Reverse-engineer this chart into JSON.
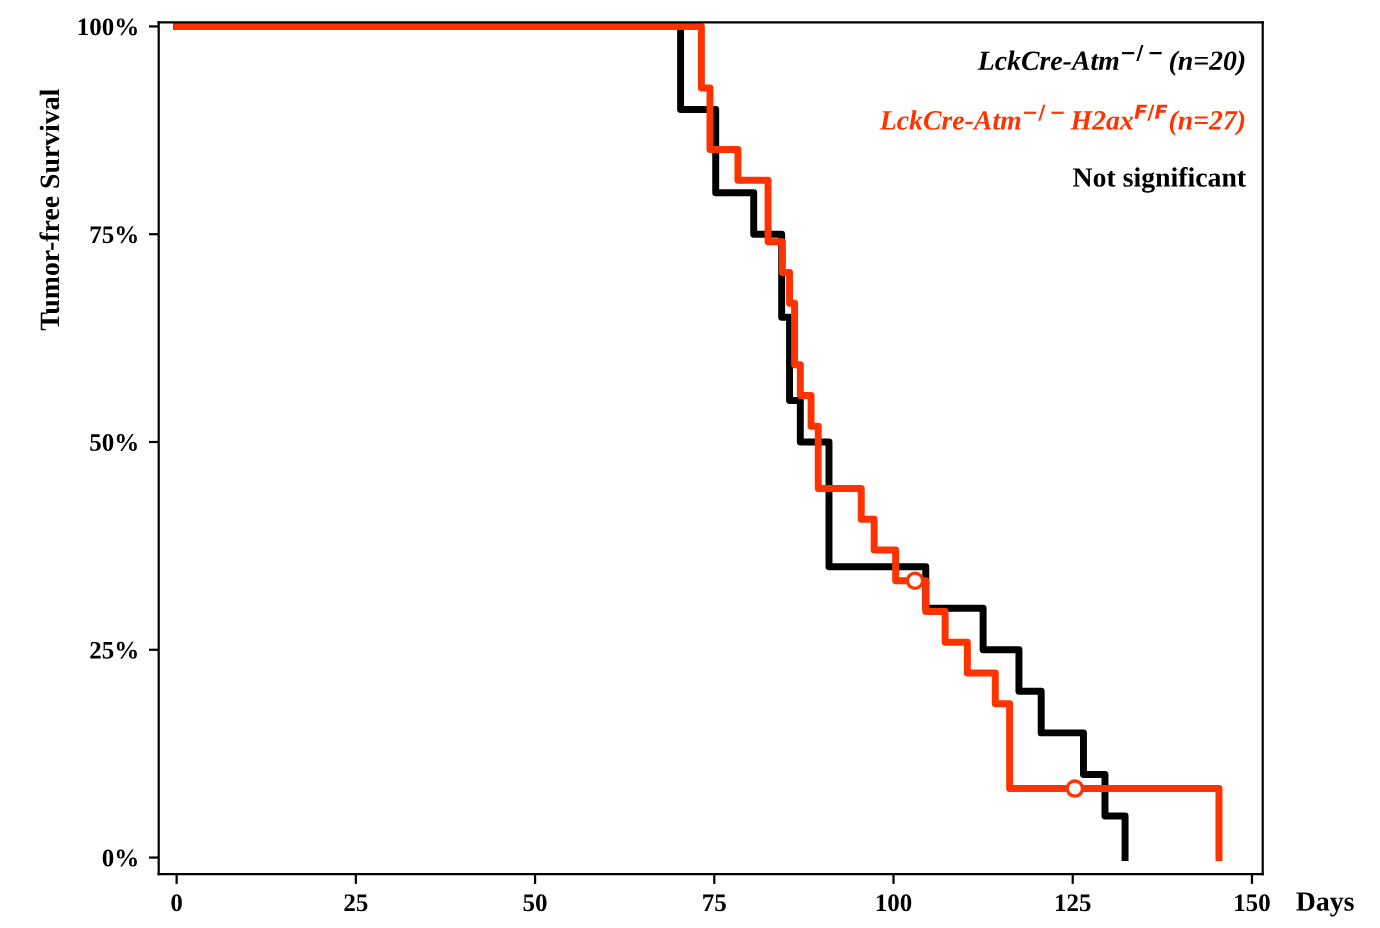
{
  "chart_data": {
    "type": "step",
    "xlabel": "Days",
    "ylabel": "Tumor-free Survival",
    "xlim": [
      -2.5,
      151.5
    ],
    "ylim": [
      -2,
      100.5
    ],
    "xticks": [
      0,
      25,
      50,
      75,
      100,
      125,
      150
    ],
    "yticks": [
      {
        "value": 0,
        "label": "0%"
      },
      {
        "value": 25,
        "label": "25%"
      },
      {
        "value": 50,
        "label": "50%"
      },
      {
        "value": 75,
        "label": "75%"
      },
      {
        "value": 100,
        "label": "100%"
      }
    ],
    "grid": false,
    "legend": "top right",
    "annotations": [
      "Not significant"
    ],
    "series": [
      {
        "name": "LckCre-Atm$^{−/−}$(n=20)",
        "color": "#000000",
        "x": [
          0,
          70.3,
          75.2,
          80.5,
          84.4,
          85.5,
          87,
          91,
          104.5,
          112.5,
          117.5,
          120.6,
          126.5,
          129.5,
          132.3
        ],
        "values": [
          100,
          90,
          80,
          75,
          65,
          55,
          50,
          35,
          30,
          25,
          20,
          15,
          10,
          5,
          0
        ]
      },
      {
        "name": "LckCre-Atm$^{−/−}$H2ax$^{F/F}$(n=27)",
        "color": "#ff3300",
        "x": [
          0,
          73.2,
          74.4,
          78.3,
          82.5,
          84.5,
          85.5,
          86.2,
          87,
          88.5,
          89.5,
          95.5,
          97.3,
          100.3,
          104.5,
          107.2,
          110.3,
          114.2,
          116.2,
          145.4
        ],
        "values": [
          100,
          92.6,
          85.2,
          81.5,
          74.1,
          70.4,
          66.7,
          59.3,
          55.6,
          51.9,
          44.4,
          40.7,
          37,
          33.3,
          29.6,
          25.9,
          22.2,
          18.5,
          8.3,
          0
        ]
      },
      {
        "type": "scatter",
        "marker": "circle",
        "color": "#ff3300",
        "x": [
          103,
          125.3
        ],
        "values": [
          33.3,
          8.3
        ]
      }
    ]
  }
}
